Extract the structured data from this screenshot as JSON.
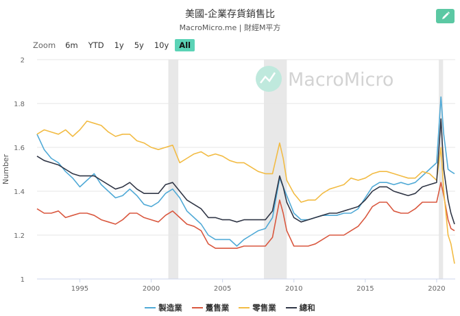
{
  "header": {
    "title": "美國-企業存貨銷售比",
    "subtitle": "MacroMicro.me | 財經M平方"
  },
  "zoom": {
    "label": "Zoom",
    "buttons": [
      "6m",
      "YTD",
      "1y",
      "5y",
      "10y",
      "All"
    ],
    "active": "All"
  },
  "watermark": "MacroMicro",
  "colors": {
    "manufacturing": "#4fa9d6",
    "wholesale": "#d9573e",
    "retail": "#f2bb43",
    "total": "#2f3545",
    "recession": "#e8e8e8",
    "accent": "#5bc8a3"
  },
  "chart_data": {
    "type": "line",
    "title": "美國-企業存貨銷售比",
    "ylabel": "Number",
    "xlabel": "",
    "ylim": [
      1,
      2
    ],
    "xlim": [
      1992,
      2021.3
    ],
    "yticks": [
      "1",
      "1.2",
      "1.4",
      "1.6",
      "1.8",
      "2"
    ],
    "xticks": [
      "1995",
      "2000",
      "2005",
      "2010",
      "2015",
      "2020"
    ],
    "recessions": [
      [
        2001.2,
        2001.9
      ],
      [
        2007.9,
        2009.5
      ],
      [
        2020.15,
        2020.45
      ]
    ],
    "legend_position": "bottom",
    "series": [
      {
        "name": "製造業",
        "key": "manufacturing",
        "points": [
          [
            1992.0,
            1.66
          ],
          [
            1992.5,
            1.59
          ],
          [
            1993.0,
            1.55
          ],
          [
            1993.5,
            1.53
          ],
          [
            1994.0,
            1.49
          ],
          [
            1994.5,
            1.46
          ],
          [
            1995.0,
            1.42
          ],
          [
            1995.5,
            1.45
          ],
          [
            1996.0,
            1.48
          ],
          [
            1996.5,
            1.43
          ],
          [
            1997.0,
            1.4
          ],
          [
            1997.5,
            1.37
          ],
          [
            1998.0,
            1.38
          ],
          [
            1998.5,
            1.41
          ],
          [
            1999.0,
            1.38
          ],
          [
            1999.5,
            1.34
          ],
          [
            2000.0,
            1.33
          ],
          [
            2000.5,
            1.35
          ],
          [
            2001.0,
            1.39
          ],
          [
            2001.5,
            1.41
          ],
          [
            2002.0,
            1.37
          ],
          [
            2002.5,
            1.31
          ],
          [
            2003.0,
            1.28
          ],
          [
            2003.5,
            1.25
          ],
          [
            2004.0,
            1.2
          ],
          [
            2004.5,
            1.18
          ],
          [
            2005.0,
            1.18
          ],
          [
            2005.5,
            1.18
          ],
          [
            2006.0,
            1.15
          ],
          [
            2006.5,
            1.18
          ],
          [
            2007.0,
            1.2
          ],
          [
            2007.5,
            1.22
          ],
          [
            2008.0,
            1.23
          ],
          [
            2008.5,
            1.28
          ],
          [
            2009.0,
            1.46
          ],
          [
            2009.25,
            1.42
          ],
          [
            2009.5,
            1.38
          ],
          [
            2010.0,
            1.3
          ],
          [
            2010.5,
            1.27
          ],
          [
            2011.0,
            1.27
          ],
          [
            2011.5,
            1.28
          ],
          [
            2012.0,
            1.29
          ],
          [
            2012.5,
            1.29
          ],
          [
            2013.0,
            1.29
          ],
          [
            2013.5,
            1.3
          ],
          [
            2014.0,
            1.3
          ],
          [
            2014.5,
            1.32
          ],
          [
            2015.0,
            1.37
          ],
          [
            2015.5,
            1.42
          ],
          [
            2016.0,
            1.44
          ],
          [
            2016.5,
            1.44
          ],
          [
            2017.0,
            1.43
          ],
          [
            2017.5,
            1.44
          ],
          [
            2018.0,
            1.43
          ],
          [
            2018.5,
            1.44
          ],
          [
            2019.0,
            1.47
          ],
          [
            2019.5,
            1.5
          ],
          [
            2020.0,
            1.53
          ],
          [
            2020.3,
            1.83
          ],
          [
            2020.5,
            1.66
          ],
          [
            2020.8,
            1.5
          ],
          [
            2021.0,
            1.49
          ],
          [
            2021.25,
            1.48
          ]
        ]
      },
      {
        "name": "躉售業",
        "key": "wholesale",
        "points": [
          [
            1992.0,
            1.32
          ],
          [
            1992.5,
            1.3
          ],
          [
            1993.0,
            1.3
          ],
          [
            1993.5,
            1.31
          ],
          [
            1994.0,
            1.28
          ],
          [
            1994.5,
            1.29
          ],
          [
            1995.0,
            1.3
          ],
          [
            1995.5,
            1.3
          ],
          [
            1996.0,
            1.29
          ],
          [
            1996.5,
            1.27
          ],
          [
            1997.0,
            1.26
          ],
          [
            1997.5,
            1.25
          ],
          [
            1998.0,
            1.27
          ],
          [
            1998.5,
            1.3
          ],
          [
            1999.0,
            1.3
          ],
          [
            1999.5,
            1.28
          ],
          [
            2000.0,
            1.27
          ],
          [
            2000.5,
            1.26
          ],
          [
            2001.0,
            1.29
          ],
          [
            2001.5,
            1.31
          ],
          [
            2002.0,
            1.28
          ],
          [
            2002.5,
            1.25
          ],
          [
            2003.0,
            1.24
          ],
          [
            2003.5,
            1.22
          ],
          [
            2004.0,
            1.16
          ],
          [
            2004.5,
            1.14
          ],
          [
            2005.0,
            1.14
          ],
          [
            2005.5,
            1.14
          ],
          [
            2006.0,
            1.14
          ],
          [
            2006.5,
            1.15
          ],
          [
            2007.0,
            1.15
          ],
          [
            2007.5,
            1.15
          ],
          [
            2008.0,
            1.15
          ],
          [
            2008.5,
            1.19
          ],
          [
            2009.0,
            1.36
          ],
          [
            2009.25,
            1.3
          ],
          [
            2009.5,
            1.22
          ],
          [
            2010.0,
            1.15
          ],
          [
            2010.5,
            1.15
          ],
          [
            2011.0,
            1.15
          ],
          [
            2011.5,
            1.16
          ],
          [
            2012.0,
            1.18
          ],
          [
            2012.5,
            1.2
          ],
          [
            2013.0,
            1.2
          ],
          [
            2013.5,
            1.2
          ],
          [
            2014.0,
            1.22
          ],
          [
            2014.5,
            1.24
          ],
          [
            2015.0,
            1.28
          ],
          [
            2015.5,
            1.33
          ],
          [
            2016.0,
            1.35
          ],
          [
            2016.5,
            1.35
          ],
          [
            2017.0,
            1.31
          ],
          [
            2017.5,
            1.3
          ],
          [
            2018.0,
            1.3
          ],
          [
            2018.5,
            1.32
          ],
          [
            2019.0,
            1.35
          ],
          [
            2019.5,
            1.35
          ],
          [
            2020.0,
            1.35
          ],
          [
            2020.3,
            1.44
          ],
          [
            2020.5,
            1.38
          ],
          [
            2020.8,
            1.27
          ],
          [
            2021.0,
            1.23
          ],
          [
            2021.25,
            1.22
          ]
        ]
      },
      {
        "name": "零售業",
        "key": "retail",
        "points": [
          [
            1992.0,
            1.66
          ],
          [
            1992.5,
            1.68
          ],
          [
            1993.0,
            1.67
          ],
          [
            1993.5,
            1.66
          ],
          [
            1994.0,
            1.68
          ],
          [
            1994.5,
            1.65
          ],
          [
            1995.0,
            1.68
          ],
          [
            1995.5,
            1.72
          ],
          [
            1996.0,
            1.71
          ],
          [
            1996.5,
            1.7
          ],
          [
            1997.0,
            1.67
          ],
          [
            1997.5,
            1.65
          ],
          [
            1998.0,
            1.66
          ],
          [
            1998.5,
            1.66
          ],
          [
            1999.0,
            1.63
          ],
          [
            1999.5,
            1.62
          ],
          [
            2000.0,
            1.6
          ],
          [
            2000.5,
            1.59
          ],
          [
            2001.0,
            1.6
          ],
          [
            2001.5,
            1.61
          ],
          [
            2002.0,
            1.53
          ],
          [
            2002.5,
            1.55
          ],
          [
            2003.0,
            1.57
          ],
          [
            2003.5,
            1.58
          ],
          [
            2004.0,
            1.56
          ],
          [
            2004.5,
            1.57
          ],
          [
            2005.0,
            1.56
          ],
          [
            2005.5,
            1.54
          ],
          [
            2006.0,
            1.53
          ],
          [
            2006.5,
            1.53
          ],
          [
            2007.0,
            1.51
          ],
          [
            2007.5,
            1.49
          ],
          [
            2008.0,
            1.48
          ],
          [
            2008.5,
            1.48
          ],
          [
            2009.0,
            1.62
          ],
          [
            2009.25,
            1.55
          ],
          [
            2009.5,
            1.45
          ],
          [
            2010.0,
            1.39
          ],
          [
            2010.5,
            1.35
          ],
          [
            2011.0,
            1.36
          ],
          [
            2011.5,
            1.36
          ],
          [
            2012.0,
            1.39
          ],
          [
            2012.5,
            1.41
          ],
          [
            2013.0,
            1.42
          ],
          [
            2013.5,
            1.43
          ],
          [
            2014.0,
            1.46
          ],
          [
            2014.5,
            1.45
          ],
          [
            2015.0,
            1.46
          ],
          [
            2015.5,
            1.48
          ],
          [
            2016.0,
            1.49
          ],
          [
            2016.5,
            1.49
          ],
          [
            2017.0,
            1.48
          ],
          [
            2017.5,
            1.47
          ],
          [
            2018.0,
            1.46
          ],
          [
            2018.5,
            1.46
          ],
          [
            2019.0,
            1.49
          ],
          [
            2019.5,
            1.48
          ],
          [
            2020.0,
            1.45
          ],
          [
            2020.3,
            1.6
          ],
          [
            2020.5,
            1.4
          ],
          [
            2020.8,
            1.2
          ],
          [
            2021.0,
            1.16
          ],
          [
            2021.25,
            1.07
          ]
        ]
      },
      {
        "name": "總和",
        "key": "total",
        "points": [
          [
            1992.0,
            1.56
          ],
          [
            1992.5,
            1.54
          ],
          [
            1993.0,
            1.53
          ],
          [
            1993.5,
            1.52
          ],
          [
            1994.0,
            1.5
          ],
          [
            1994.5,
            1.48
          ],
          [
            1995.0,
            1.47
          ],
          [
            1995.5,
            1.47
          ],
          [
            1996.0,
            1.47
          ],
          [
            1996.5,
            1.45
          ],
          [
            1997.0,
            1.43
          ],
          [
            1997.5,
            1.41
          ],
          [
            1998.0,
            1.42
          ],
          [
            1998.5,
            1.44
          ],
          [
            1999.0,
            1.41
          ],
          [
            1999.5,
            1.39
          ],
          [
            2000.0,
            1.39
          ],
          [
            2000.5,
            1.39
          ],
          [
            2001.0,
            1.43
          ],
          [
            2001.5,
            1.44
          ],
          [
            2002.0,
            1.4
          ],
          [
            2002.5,
            1.36
          ],
          [
            2003.0,
            1.34
          ],
          [
            2003.5,
            1.32
          ],
          [
            2004.0,
            1.28
          ],
          [
            2004.5,
            1.28
          ],
          [
            2005.0,
            1.27
          ],
          [
            2005.5,
            1.27
          ],
          [
            2006.0,
            1.26
          ],
          [
            2006.5,
            1.27
          ],
          [
            2007.0,
            1.27
          ],
          [
            2007.5,
            1.27
          ],
          [
            2008.0,
            1.27
          ],
          [
            2008.5,
            1.31
          ],
          [
            2009.0,
            1.47
          ],
          [
            2009.25,
            1.42
          ],
          [
            2009.5,
            1.35
          ],
          [
            2010.0,
            1.28
          ],
          [
            2010.5,
            1.26
          ],
          [
            2011.0,
            1.27
          ],
          [
            2011.5,
            1.28
          ],
          [
            2012.0,
            1.29
          ],
          [
            2012.5,
            1.3
          ],
          [
            2013.0,
            1.3
          ],
          [
            2013.5,
            1.31
          ],
          [
            2014.0,
            1.32
          ],
          [
            2014.5,
            1.33
          ],
          [
            2015.0,
            1.36
          ],
          [
            2015.5,
            1.4
          ],
          [
            2016.0,
            1.42
          ],
          [
            2016.5,
            1.42
          ],
          [
            2017.0,
            1.4
          ],
          [
            2017.5,
            1.39
          ],
          [
            2018.0,
            1.38
          ],
          [
            2018.5,
            1.39
          ],
          [
            2019.0,
            1.42
          ],
          [
            2019.5,
            1.43
          ],
          [
            2020.0,
            1.44
          ],
          [
            2020.3,
            1.73
          ],
          [
            2020.5,
            1.5
          ],
          [
            2020.8,
            1.36
          ],
          [
            2021.0,
            1.3
          ],
          [
            2021.25,
            1.25
          ]
        ]
      }
    ]
  }
}
